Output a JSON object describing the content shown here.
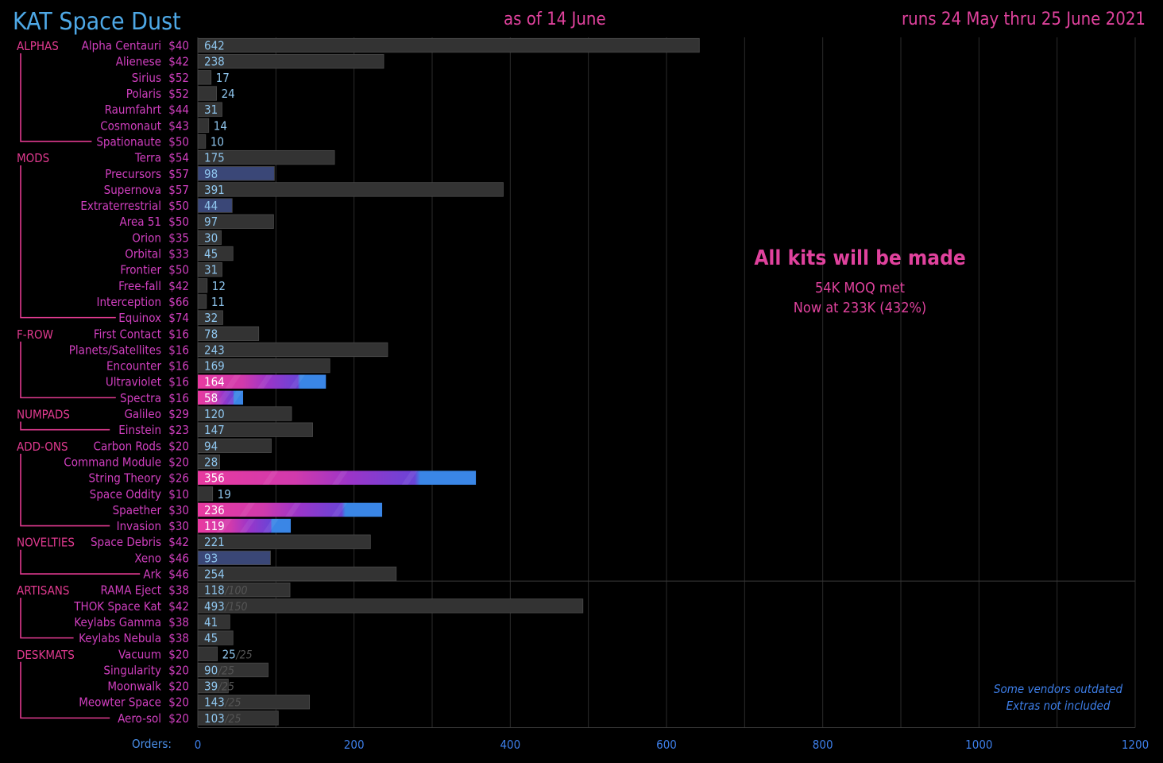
{
  "header": {
    "title": "KAT Space Dust",
    "as_of": "as of 14 June",
    "runs": "runs 24 May thru 25 June 2021"
  },
  "annotation": {
    "headline": "All kits will be made",
    "line1": "54K MOQ met",
    "line2": "Now at 233K (432%)"
  },
  "notes": {
    "line1": "Some vendors outdated",
    "line2": "Extras not included"
  },
  "axis": {
    "label": "Orders:"
  },
  "colors": {
    "background": "#000000",
    "bar_default": "#333333",
    "bar_highlight": "#3a4777",
    "gradient": [
      "#e83aa0",
      "#9a35c9",
      "#6a44d6",
      "#3a86e6"
    ],
    "value_text": "#8fc6ee",
    "item_text": "#d03fbf",
    "group_text": "#e03a8f",
    "axis_text": "#3d7ee8",
    "moq_text": "#555555"
  },
  "chart_data": {
    "type": "bar",
    "orientation": "horizontal",
    "title": "KAT Space Dust",
    "xlabel": "Orders:",
    "xlim": [
      0,
      1200
    ],
    "xticks": [
      "0",
      "200",
      "400",
      "600",
      "800",
      "1000",
      "1200"
    ],
    "groups": [
      {
        "name": "ALPHAS",
        "items": [
          {
            "name": "Alpha Centauri",
            "price": "$40",
            "value": 642,
            "style": "default"
          },
          {
            "name": "Alienese",
            "price": "$42",
            "value": 238,
            "style": "default"
          },
          {
            "name": "Sirius",
            "price": "$52",
            "value": 17,
            "style": "default"
          },
          {
            "name": "Polaris",
            "price": "$52",
            "value": 24,
            "style": "default"
          },
          {
            "name": "Raumfahrt",
            "price": "$44",
            "value": 31,
            "style": "default"
          },
          {
            "name": "Cosmonaut",
            "price": "$43",
            "value": 14,
            "style": "default"
          },
          {
            "name": "Spationaute",
            "price": "$50",
            "value": 10,
            "style": "default"
          }
        ]
      },
      {
        "name": "MODS",
        "items": [
          {
            "name": "Terra",
            "price": "$54",
            "value": 175,
            "style": "default"
          },
          {
            "name": "Precursors",
            "price": "$57",
            "value": 98,
            "style": "highlight"
          },
          {
            "name": "Supernova",
            "price": "$57",
            "value": 391,
            "style": "default"
          },
          {
            "name": "Extraterrestrial",
            "price": "$50",
            "value": 44,
            "style": "highlight"
          },
          {
            "name": "Area 51",
            "price": "$50",
            "value": 97,
            "style": "default"
          },
          {
            "name": "Orion",
            "price": "$35",
            "value": 30,
            "style": "default"
          },
          {
            "name": "Orbital",
            "price": "$33",
            "value": 45,
            "style": "default"
          },
          {
            "name": "Frontier",
            "price": "$50",
            "value": 31,
            "style": "default"
          },
          {
            "name": "Free-fall",
            "price": "$42",
            "value": 12,
            "style": "default"
          },
          {
            "name": "Interception",
            "price": "$66",
            "value": 11,
            "style": "default"
          },
          {
            "name": "Equinox",
            "price": "$74",
            "value": 32,
            "style": "default"
          }
        ]
      },
      {
        "name": "F-ROW",
        "items": [
          {
            "name": "First Contact",
            "price": "$16",
            "value": 78,
            "style": "default"
          },
          {
            "name": "Planets/Satellites",
            "price": "$16",
            "value": 243,
            "style": "default"
          },
          {
            "name": "Encounter",
            "price": "$16",
            "value": 169,
            "style": "default"
          },
          {
            "name": "Ultraviolet",
            "price": "$16",
            "value": 164,
            "style": "gradient"
          },
          {
            "name": "Spectra",
            "price": "$16",
            "value": 58,
            "style": "gradient"
          }
        ]
      },
      {
        "name": "NUMPADS",
        "items": [
          {
            "name": "Galileo",
            "price": "$29",
            "value": 120,
            "style": "default"
          },
          {
            "name": "Einstein",
            "price": "$23",
            "value": 147,
            "style": "default"
          }
        ]
      },
      {
        "name": "ADD-ONS",
        "items": [
          {
            "name": "Carbon Rods",
            "price": "$20",
            "value": 94,
            "style": "default"
          },
          {
            "name": "Command Module",
            "price": "$20",
            "value": 28,
            "style": "default"
          },
          {
            "name": "String Theory",
            "price": "$26",
            "value": 356,
            "style": "gradient"
          },
          {
            "name": "Space Oddity",
            "price": "$10",
            "value": 19,
            "style": "default"
          },
          {
            "name": "Spaether",
            "price": "$30",
            "value": 236,
            "style": "gradient"
          },
          {
            "name": "Invasion",
            "price": "$30",
            "value": 119,
            "style": "gradient"
          }
        ]
      },
      {
        "name": "NOVELTIES",
        "items": [
          {
            "name": "Space Debris",
            "price": "$42",
            "value": 221,
            "style": "default"
          },
          {
            "name": "Xeno",
            "price": "$46",
            "value": 93,
            "style": "highlight"
          },
          {
            "name": "Ark",
            "price": "$46",
            "value": 254,
            "style": "default"
          }
        ]
      },
      {
        "name": "ARTISANS",
        "items": [
          {
            "name": "RAMA Eject",
            "price": "$38",
            "value": 118,
            "moq": "/100",
            "style": "default"
          },
          {
            "name": "THOK Space Kat",
            "price": "$42",
            "value": 493,
            "moq": "/150",
            "style": "default"
          },
          {
            "name": "Keylabs Gamma",
            "price": "$38",
            "value": 41,
            "style": "default"
          },
          {
            "name": "Keylabs Nebula",
            "price": "$38",
            "value": 45,
            "style": "default"
          }
        ]
      },
      {
        "name": "DESKMATS",
        "items": [
          {
            "name": "Vacuum",
            "price": "$20",
            "value": 25,
            "moq": "/25",
            "style": "default"
          },
          {
            "name": "Singularity",
            "price": "$20",
            "value": 90,
            "moq": "/25",
            "style": "default"
          },
          {
            "name": "Moonwalk",
            "price": "$20",
            "value": 39,
            "moq": "/25",
            "style": "default"
          },
          {
            "name": "Meowter Space",
            "price": "$20",
            "value": 143,
            "moq": "/25",
            "style": "default"
          },
          {
            "name": "Aero-sol",
            "price": "$20",
            "value": 103,
            "moq": "/25",
            "style": "default"
          }
        ]
      }
    ]
  }
}
